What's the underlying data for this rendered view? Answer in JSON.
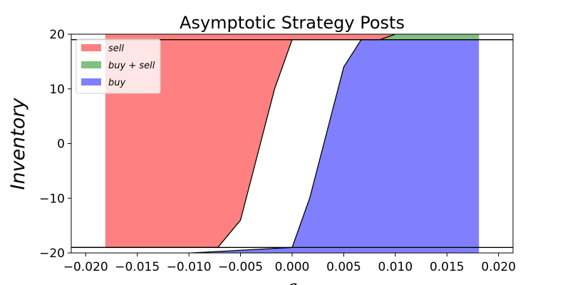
{
  "chart_data": {
    "type": "area",
    "title": "Asymptotic Strategy Posts",
    "xlabel": "a",
    "ylabel": "Inventory",
    "xlim": [
      -0.0214,
      0.0214
    ],
    "ylim": [
      -20,
      20
    ],
    "xticks": [
      -0.02,
      -0.015,
      -0.01,
      -0.005,
      0.0,
      0.005,
      0.01,
      0.015,
      0.02
    ],
    "xtick_labels": [
      "−0.020",
      "−0.015",
      "−0.010",
      "−0.005",
      "0.000",
      "0.005",
      "0.010",
      "0.015",
      "0.020"
    ],
    "yticks": [
      -20,
      -10,
      0,
      10,
      20
    ],
    "ytick_labels": [
      "−20",
      "−10",
      "0",
      "10",
      "20"
    ],
    "grid": false,
    "legend": "top-left",
    "series": [
      {
        "name": "sell",
        "label": "sell",
        "color": "#ff8080"
      },
      {
        "name": "buy + sell",
        "label": "buy + sell",
        "color": "#80c080"
      },
      {
        "name": "buy",
        "label": "buy",
        "color": "#8080ff"
      }
    ],
    "region_bounds": {
      "x_min": -0.0181,
      "x_max": 0.0181,
      "ask_boundary": [
        [
          -0.0214,
          -19
        ],
        [
          -0.0072,
          -19
        ],
        [
          -0.005,
          -14
        ],
        [
          -0.0017,
          10
        ],
        [
          0.0,
          19
        ],
        [
          0.0214,
          19
        ]
      ],
      "bid_boundary": [
        [
          -0.0214,
          -22
        ],
        [
          -0.0123,
          -22
        ],
        [
          -0.0098,
          -20
        ],
        [
          0.0,
          -19
        ],
        [
          0.0017,
          -10
        ],
        [
          0.005,
          14
        ],
        [
          0.0067,
          19
        ],
        [
          0.0085,
          19
        ],
        [
          0.0115,
          21
        ],
        [
          0.0214,
          21
        ]
      ],
      "upper_line": [
        [
          -0.0214,
          19
        ],
        [
          0.0214,
          19
        ]
      ],
      "lower_line": [
        [
          -0.0214,
          -19
        ],
        [
          0.0214,
          -19
        ]
      ]
    }
  }
}
